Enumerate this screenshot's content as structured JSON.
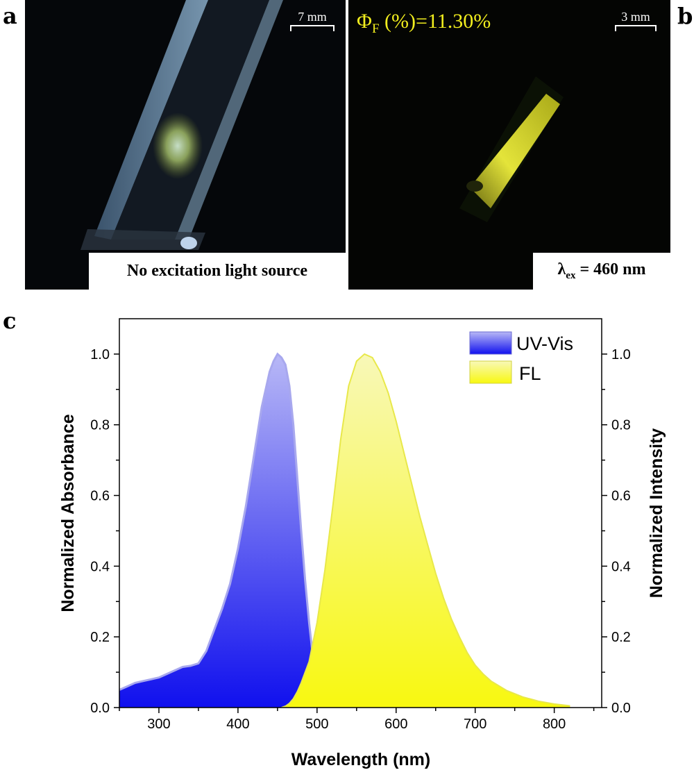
{
  "panels": {
    "a": {
      "letter": "a",
      "caption": "No excitation light source",
      "scale_label": "7 mm"
    },
    "b": {
      "letter": "b",
      "qy_symbol": "Φ",
      "qy_sub": "F",
      "qy_text": " (%)=11.30%",
      "caption_symbol": "λ",
      "caption_sub": "ex",
      "caption_text": " = 460 nm",
      "scale_label": "3 mm"
    },
    "c": {
      "letter": "c"
    }
  },
  "chart_data": {
    "type": "area",
    "title": "",
    "xlabel": "Wavelength (nm)",
    "ylabel_left": "Normalized Absorbance",
    "ylabel_right": "Normalized Intensity",
    "xlim": [
      250,
      860
    ],
    "ylim": [
      0,
      1.1
    ],
    "x_ticks": [
      300,
      400,
      500,
      600,
      700,
      800
    ],
    "y_ticks": [
      0.0,
      0.2,
      0.4,
      0.6,
      0.8,
      1.0
    ],
    "y_tick_labels": [
      "0.0",
      "0.2",
      "0.4",
      "0.6",
      "0.8",
      "1.0"
    ],
    "legend_position": "top-right",
    "series": [
      {
        "name": "UV-Vis",
        "axis": "left",
        "colors": {
          "top": "#b8b8f6",
          "bottom": "#1010ee",
          "edge": "#a8a8ee"
        },
        "x": [
          250,
          260,
          270,
          280,
          290,
          300,
          310,
          320,
          330,
          340,
          350,
          360,
          370,
          380,
          390,
          400,
          410,
          420,
          430,
          440,
          445,
          450,
          455,
          460,
          465,
          470,
          475,
          480,
          485,
          490,
          495,
          500,
          505,
          510
        ],
        "y": [
          0.05,
          0.06,
          0.07,
          0.075,
          0.08,
          0.085,
          0.095,
          0.105,
          0.115,
          0.118,
          0.125,
          0.16,
          0.22,
          0.28,
          0.35,
          0.45,
          0.57,
          0.71,
          0.85,
          0.95,
          0.98,
          1.0,
          0.99,
          0.97,
          0.91,
          0.8,
          0.65,
          0.5,
          0.36,
          0.24,
          0.14,
          0.07,
          0.02,
          0.0
        ]
      },
      {
        "name": "FL",
        "axis": "right",
        "colors": {
          "top": "#f8f8b8",
          "bottom": "#f8f810",
          "edge": "#e8e84a"
        },
        "x": [
          455,
          460,
          465,
          470,
          475,
          480,
          490,
          500,
          510,
          520,
          530,
          540,
          550,
          560,
          570,
          580,
          590,
          600,
          610,
          620,
          630,
          640,
          650,
          660,
          670,
          680,
          690,
          700,
          710,
          720,
          740,
          760,
          780,
          800,
          820
        ],
        "y": [
          0.0,
          0.004,
          0.012,
          0.025,
          0.045,
          0.07,
          0.13,
          0.24,
          0.39,
          0.57,
          0.76,
          0.91,
          0.98,
          1.0,
          0.99,
          0.95,
          0.89,
          0.81,
          0.72,
          0.63,
          0.54,
          0.46,
          0.38,
          0.31,
          0.25,
          0.2,
          0.155,
          0.12,
          0.095,
          0.075,
          0.048,
          0.03,
          0.018,
          0.01,
          0.005
        ]
      }
    ]
  }
}
